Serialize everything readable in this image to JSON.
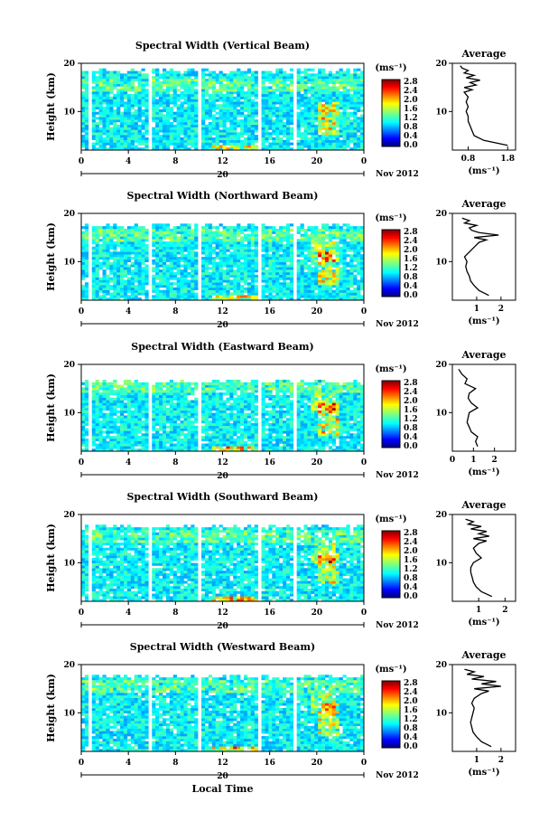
{
  "chart_data": [
    {
      "type": "heatmap",
      "title": "Spectral Width (Vertical Beam)",
      "ylabel": "Height (km)",
      "yticks": [
        "20",
        "10"
      ],
      "xticks": [
        "0",
        "4",
        "8",
        "12",
        "16",
        "20",
        "0"
      ],
      "ylim": [
        2,
        20
      ],
      "xlim": [
        0,
        24
      ],
      "date_label": "20",
      "month_label": "Nov 2012",
      "colorbar": {
        "label": "(ms⁻¹)",
        "ticks": [
          "2.8",
          "2.4",
          "2.0",
          "1.6",
          "1.2",
          "0.8",
          "0.4",
          "0.0"
        ],
        "range": [
          0,
          2.8
        ]
      },
      "gaps_hours": [
        [
          0.2,
          0.4
        ],
        [
          0.6,
          0.8
        ],
        [
          5.6,
          6.0
        ],
        [
          9.8,
          10.2
        ],
        [
          15.0,
          15.4
        ],
        [
          18.0,
          18.4
        ]
      ],
      "top_height_km": 18.5,
      "average_profile": {
        "title": "Average",
        "xlabel": "(ms⁻¹)",
        "xticks": [
          "0.8",
          "1.8"
        ],
        "xlim": [
          0.4,
          2.0
        ],
        "yticks": [
          "20",
          "10"
        ],
        "height_km": [
          3,
          4,
          5,
          6,
          7,
          8,
          9,
          10,
          11,
          12,
          13,
          14,
          14.5,
          15,
          15.5,
          16,
          16.5,
          17,
          17.5,
          18,
          18.5,
          19,
          19.5
        ],
        "values": [
          1.8,
          1.2,
          0.95,
          0.9,
          0.85,
          0.8,
          0.8,
          0.75,
          0.8,
          0.75,
          0.8,
          0.7,
          0.9,
          0.7,
          1.0,
          0.85,
          1.1,
          0.75,
          0.95,
          0.7,
          0.8,
          0.65,
          0.6
        ]
      }
    },
    {
      "type": "heatmap",
      "title": "Spectral Width (Northward Beam)",
      "ylabel": "Height (km)",
      "yticks": [
        "20",
        "10"
      ],
      "xticks": [
        "0",
        "4",
        "8",
        "12",
        "16",
        "20",
        "0"
      ],
      "ylim": [
        2,
        20
      ],
      "xlim": [
        0,
        24
      ],
      "date_label": "20",
      "month_label": "Nov 2012",
      "colorbar": {
        "label": "(ms⁻¹)",
        "ticks": [
          "2.8",
          "2.4",
          "2.0",
          "1.6",
          "1.2",
          "0.8",
          "0.4",
          "0.0"
        ],
        "range": [
          0,
          2.8
        ]
      },
      "gaps_hours": [
        [
          0.2,
          0.4
        ],
        [
          0.6,
          0.8
        ],
        [
          5.6,
          6.0
        ],
        [
          9.8,
          10.2
        ],
        [
          15.0,
          15.4
        ],
        [
          18.0,
          18.4
        ]
      ],
      "top_height_km": 17.5,
      "average_profile": {
        "title": "Average",
        "xlabel": "(ms⁻¹)",
        "xticks": [
          "1",
          "2"
        ],
        "xlim": [
          0,
          2.6
        ],
        "yticks": [
          "20",
          "10"
        ],
        "height_km": [
          3,
          4,
          5,
          6,
          7,
          8,
          9,
          10,
          11,
          12,
          13,
          14,
          14.5,
          15,
          15.5,
          16,
          16.5,
          17,
          17.5,
          18,
          18.5,
          19
        ],
        "values": [
          1.5,
          1.1,
          0.9,
          0.75,
          0.7,
          0.6,
          0.55,
          0.6,
          0.5,
          0.7,
          0.9,
          1.1,
          1.4,
          0.9,
          1.9,
          1.1,
          0.8,
          0.7,
          1.0,
          0.5,
          0.7,
          0.4
        ]
      }
    },
    {
      "type": "heatmap",
      "title": "Spectral Width (Eastward Beam)",
      "ylabel": "Height (km)",
      "yticks": [
        "20",
        "10"
      ],
      "xticks": [
        "0",
        "4",
        "8",
        "12",
        "16",
        "20",
        "0"
      ],
      "ylim": [
        2,
        20
      ],
      "xlim": [
        0,
        24
      ],
      "date_label": "20",
      "month_label": "Nov 2012",
      "colorbar": {
        "label": "(ms⁻¹)",
        "ticks": [
          "2.8",
          "2.4",
          "2.0",
          "1.6",
          "1.2",
          "0.8",
          "0.4",
          "0.0"
        ],
        "range": [
          0,
          2.8
        ]
      },
      "gaps_hours": [
        [
          0.2,
          0.4
        ],
        [
          0.6,
          0.8
        ],
        [
          5.6,
          6.0
        ],
        [
          9.8,
          10.2
        ],
        [
          15.0,
          15.4
        ],
        [
          18.0,
          18.4
        ]
      ],
      "top_height_km": 16.5,
      "average_profile": {
        "title": "Average",
        "xlabel": "(ms⁻¹)",
        "xticks": [
          "0",
          "1",
          "2"
        ],
        "xlim": [
          0,
          3
        ],
        "yticks": [
          "20",
          "10"
        ],
        "height_km": [
          3,
          4,
          5,
          6,
          7,
          8,
          9,
          10,
          11,
          12,
          13,
          14,
          15,
          16,
          17,
          18,
          19
        ],
        "values": [
          1.2,
          1.1,
          1.2,
          0.9,
          0.8,
          0.7,
          0.75,
          0.8,
          1.2,
          0.9,
          0.75,
          0.8,
          1.1,
          0.6,
          0.7,
          0.45,
          0.3
        ]
      }
    },
    {
      "type": "heatmap",
      "title": "Spectral Width (Southward Beam)",
      "ylabel": "Height (km)",
      "yticks": [
        "20",
        "10"
      ],
      "xticks": [
        "0",
        "4",
        "8",
        "12",
        "16",
        "20",
        "0"
      ],
      "ylim": [
        2,
        20
      ],
      "xlim": [
        0,
        24
      ],
      "date_label": "20",
      "month_label": "Nov 2012",
      "colorbar": {
        "label": "(ms⁻¹)",
        "ticks": [
          "2.8",
          "2.4",
          "2.0",
          "1.6",
          "1.2",
          "0.8",
          "0.4",
          "0.0"
        ],
        "range": [
          0,
          2.8
        ]
      },
      "gaps_hours": [
        [
          0.2,
          0.4
        ],
        [
          0.6,
          0.8
        ],
        [
          5.6,
          6.0
        ],
        [
          9.8,
          10.2
        ],
        [
          15.0,
          15.4
        ],
        [
          18.0,
          18.4
        ]
      ],
      "top_height_km": 17.5,
      "average_profile": {
        "title": "Average",
        "xlabel": "(ms⁻¹)",
        "xticks": [
          "1",
          "2"
        ],
        "xlim": [
          0,
          2.4
        ],
        "yticks": [
          "20",
          "10"
        ],
        "height_km": [
          3,
          4,
          5,
          6,
          7,
          8,
          9,
          10,
          11,
          12,
          13,
          14,
          14.5,
          15,
          15.5,
          16,
          16.5,
          17,
          17.5,
          18,
          18.5,
          19
        ],
        "values": [
          1.5,
          1.1,
          0.9,
          0.8,
          0.75,
          0.7,
          0.7,
          0.8,
          1.1,
          0.9,
          0.8,
          1.0,
          1.3,
          0.8,
          1.4,
          1.0,
          1.3,
          0.7,
          1.1,
          0.6,
          0.8,
          0.5
        ]
      }
    },
    {
      "type": "heatmap",
      "title": "Spectral Width (Westward Beam)",
      "ylabel": "Height (km)",
      "yticks": [
        "20",
        "10"
      ],
      "xticks": [
        "0",
        "4",
        "8",
        "12",
        "16",
        "20",
        "0"
      ],
      "ylim": [
        2,
        20
      ],
      "xlim": [
        0,
        24
      ],
      "date_label": "20",
      "month_label": "Nov 2012",
      "xlabel": "Local Time",
      "colorbar": {
        "label": "(ms⁻¹)",
        "ticks": [
          "2.8",
          "2.4",
          "2.0",
          "1.6",
          "1.2",
          "0.8",
          "0.4",
          "0.0"
        ],
        "range": [
          0,
          2.8
        ]
      },
      "gaps_hours": [
        [
          0.2,
          0.4
        ],
        [
          0.6,
          0.8
        ],
        [
          5.6,
          6.0
        ],
        [
          9.8,
          10.2
        ],
        [
          15.0,
          15.4
        ],
        [
          18.0,
          18.4
        ]
      ],
      "top_height_km": 17.5,
      "average_profile": {
        "title": "Average",
        "xlabel": "(ms⁻¹)",
        "xticks": [
          "1",
          "2"
        ],
        "xlim": [
          0,
          2.6
        ],
        "yticks": [
          "20",
          "10"
        ],
        "height_km": [
          3,
          4,
          5,
          6,
          7,
          8,
          9,
          10,
          11,
          12,
          13,
          14,
          14.5,
          15,
          15.5,
          16,
          16.5,
          17,
          17.5,
          18,
          18.5,
          19
        ],
        "values": [
          1.6,
          1.2,
          1.0,
          0.85,
          0.8,
          0.75,
          0.8,
          0.85,
          0.9,
          0.8,
          0.9,
          1.2,
          1.5,
          0.9,
          2.0,
          1.2,
          1.8,
          0.8,
          1.3,
          0.6,
          0.9,
          0.5
        ]
      }
    }
  ]
}
